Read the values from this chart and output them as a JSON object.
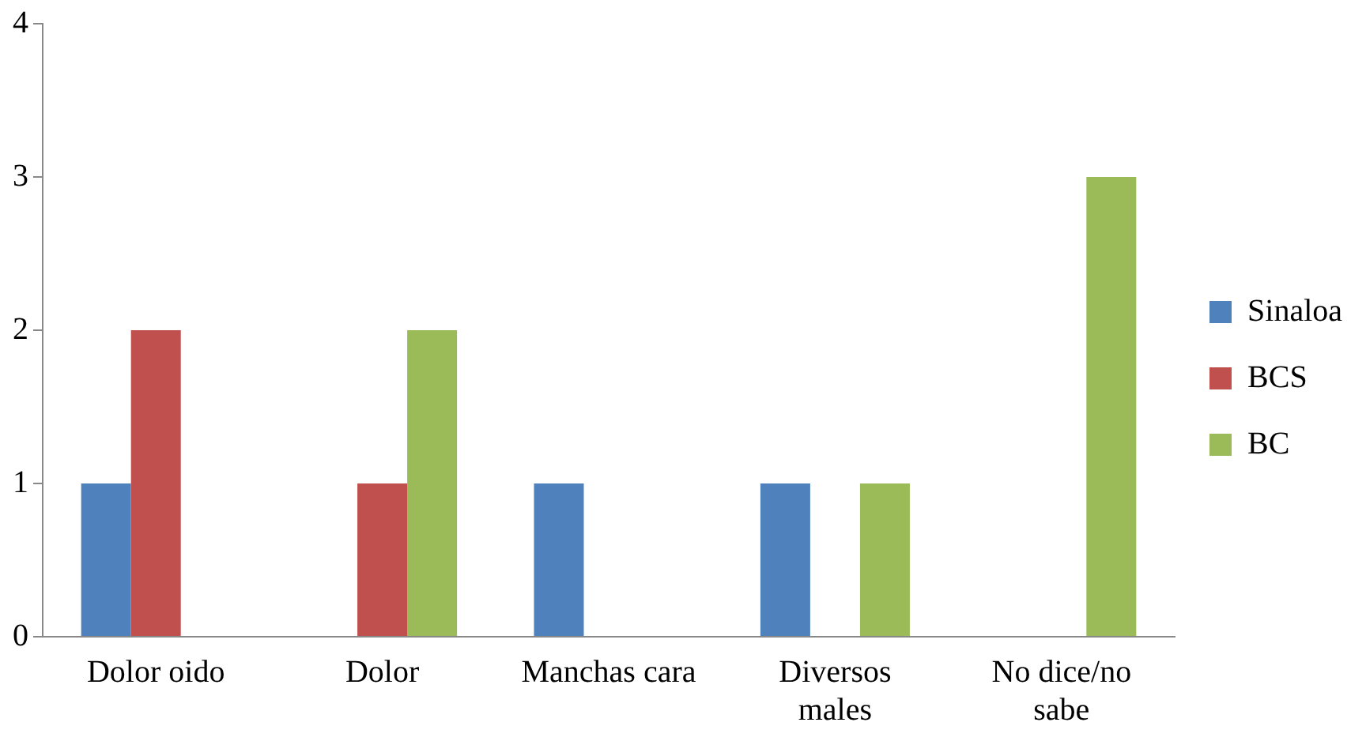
{
  "chart_data": {
    "type": "bar",
    "categories": [
      "Dolor oido",
      "Dolor",
      "Manchas cara",
      "Diversos males",
      "No dice/no sabe"
    ],
    "series": [
      {
        "name": "Sinaloa",
        "color": "#4f81bd",
        "values": [
          1,
          0,
          1,
          1,
          0
        ]
      },
      {
        "name": "BCS",
        "color": "#c0504d",
        "values": [
          2,
          1,
          0,
          0,
          0
        ]
      },
      {
        "name": "BC",
        "color": "#9bbb59",
        "values": [
          0,
          2,
          0,
          1,
          3
        ]
      }
    ],
    "ylim": [
      0,
      4
    ],
    "yticks": [
      0,
      1,
      2,
      3,
      4
    ],
    "grid": false,
    "legend": "right"
  }
}
